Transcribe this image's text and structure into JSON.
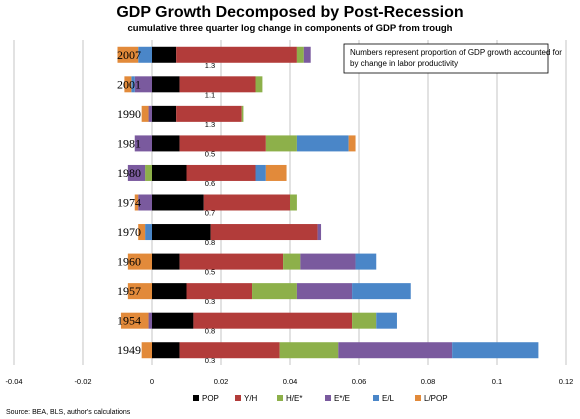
{
  "chart_data": {
    "type": "bar",
    "orientation": "horizontal",
    "stacked": true,
    "title": "GDP Growth Decomposed by Post-Recession",
    "subtitle": "cumulative three quarter log change in components of GDP from trough",
    "note": "Numbers represent proportion of GDP growth accounted for by change in labor productivity",
    "source": "Source:  BEA, BLS, author's calculations",
    "xlim": [
      -0.04,
      0.12
    ],
    "xticks": [
      "-0.04",
      "-0.02",
      "0",
      "0.02",
      "0.04",
      "0.06",
      "0.08",
      "0.1",
      "0.12"
    ],
    "grid": true,
    "legend_position": "bottom",
    "categories": [
      "2007",
      "2001",
      "1990",
      "1981",
      "1980",
      "1974",
      "1970",
      "1960",
      "1957",
      "1954",
      "1949"
    ],
    "series": [
      {
        "name": "POP",
        "color": "#000000",
        "values": [
          0.007,
          0.008,
          0.007,
          0.008,
          0.01,
          0.015,
          0.017,
          0.008,
          0.01,
          0.012,
          0.008
        ]
      },
      {
        "name": "Y/H",
        "color": "#b23c3a",
        "values": [
          0.035,
          0.022,
          0.019,
          0.025,
          0.02,
          0.025,
          0.031,
          0.03,
          0.019,
          0.046,
          0.029
        ]
      },
      {
        "name": "H/E*",
        "color": "#8db04a",
        "values": [
          0.002,
          0.002,
          0.0005,
          0.009,
          -0.002,
          0.002,
          0.0,
          0.005,
          0.013,
          0.007,
          0.017
        ]
      },
      {
        "name": "E*/E",
        "color": "#7a5a9e",
        "values": [
          0.002,
          -0.005,
          -0.001,
          -0.005,
          -0.005,
          -0.004,
          0.001,
          0.016,
          0.016,
          -0.001,
          0.033
        ]
      },
      {
        "name": "E/L",
        "color": "#4a86c8",
        "values": [
          -0.004,
          -0.001,
          0.0,
          0.015,
          0.003,
          0.0,
          -0.002,
          0.006,
          0.017,
          0.006,
          0.025
        ]
      },
      {
        "name": "L/POP",
        "color": "#e28a3a",
        "values": [
          -0.006,
          -0.002,
          -0.002,
          0.002,
          0.006,
          -0.001,
          -0.002,
          -0.007,
          -0.007,
          -0.008,
          -0.003
        ]
      }
    ],
    "productivity_share": [
      "1.3",
      "1.1",
      "1.3",
      "0.5",
      "0.6",
      "0.7",
      "0.8",
      "0.5",
      "0.3",
      "0.8",
      "0.3"
    ]
  }
}
